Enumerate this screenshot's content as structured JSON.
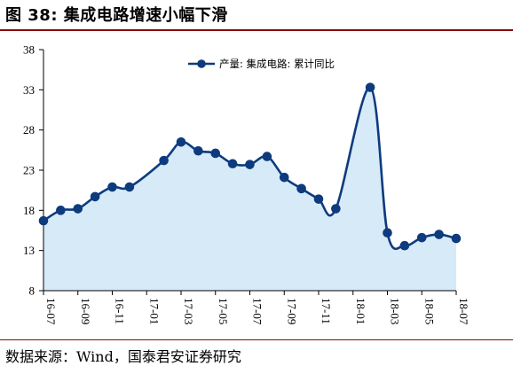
{
  "header": {
    "title": "图 38:  集成电路增速小幅下滑"
  },
  "footer": {
    "source": "数据来源：Wind，国泰君安证券研究"
  },
  "colors": {
    "line": "#0e3b7e",
    "fill": "#d7eaf8",
    "rule": "#8a0a0a"
  },
  "chart_data": {
    "type": "area",
    "title": "",
    "xlabel": "",
    "ylabel": "",
    "ylim": [
      8,
      38
    ],
    "yticks": [
      8,
      13,
      18,
      23,
      28,
      33,
      38
    ],
    "grid": false,
    "legend_position": "top-right",
    "x_tick_labels": [
      "16-07",
      "16-09",
      "16-11",
      "17-01",
      "17-03",
      "17-05",
      "17-07",
      "17-09",
      "17-11",
      "18-01",
      "18-03",
      "18-05",
      "18-07"
    ],
    "series": [
      {
        "name": "产量: 集成电路: 累计同比",
        "markers": "circle",
        "points": [
          {
            "x": "16-07",
            "y": 16.7
          },
          {
            "x": "16-08",
            "y": 18.0
          },
          {
            "x": "16-09",
            "y": 18.2
          },
          {
            "x": "16-10",
            "y": 19.7
          },
          {
            "x": "16-11",
            "y": 20.9
          },
          {
            "x": "16-12",
            "y": 20.9
          },
          {
            "x": "17-02",
            "y": 24.2
          },
          {
            "x": "17-03",
            "y": 26.5
          },
          {
            "x": "17-04",
            "y": 25.4
          },
          {
            "x": "17-05",
            "y": 25.1
          },
          {
            "x": "17-06",
            "y": 23.8
          },
          {
            "x": "17-07",
            "y": 23.7
          },
          {
            "x": "17-08",
            "y": 24.7
          },
          {
            "x": "17-09",
            "y": 22.1
          },
          {
            "x": "17-10",
            "y": 20.7
          },
          {
            "x": "17-11",
            "y": 19.4
          },
          {
            "x": "17-12",
            "y": 18.2
          },
          {
            "x": "18-02",
            "y": 33.3
          },
          {
            "x": "18-03",
            "y": 15.2
          },
          {
            "x": "18-04",
            "y": 13.6
          },
          {
            "x": "18-05",
            "y": 14.6
          },
          {
            "x": "18-06",
            "y": 15.0
          },
          {
            "x": "18-07",
            "y": 14.5
          }
        ]
      }
    ]
  }
}
